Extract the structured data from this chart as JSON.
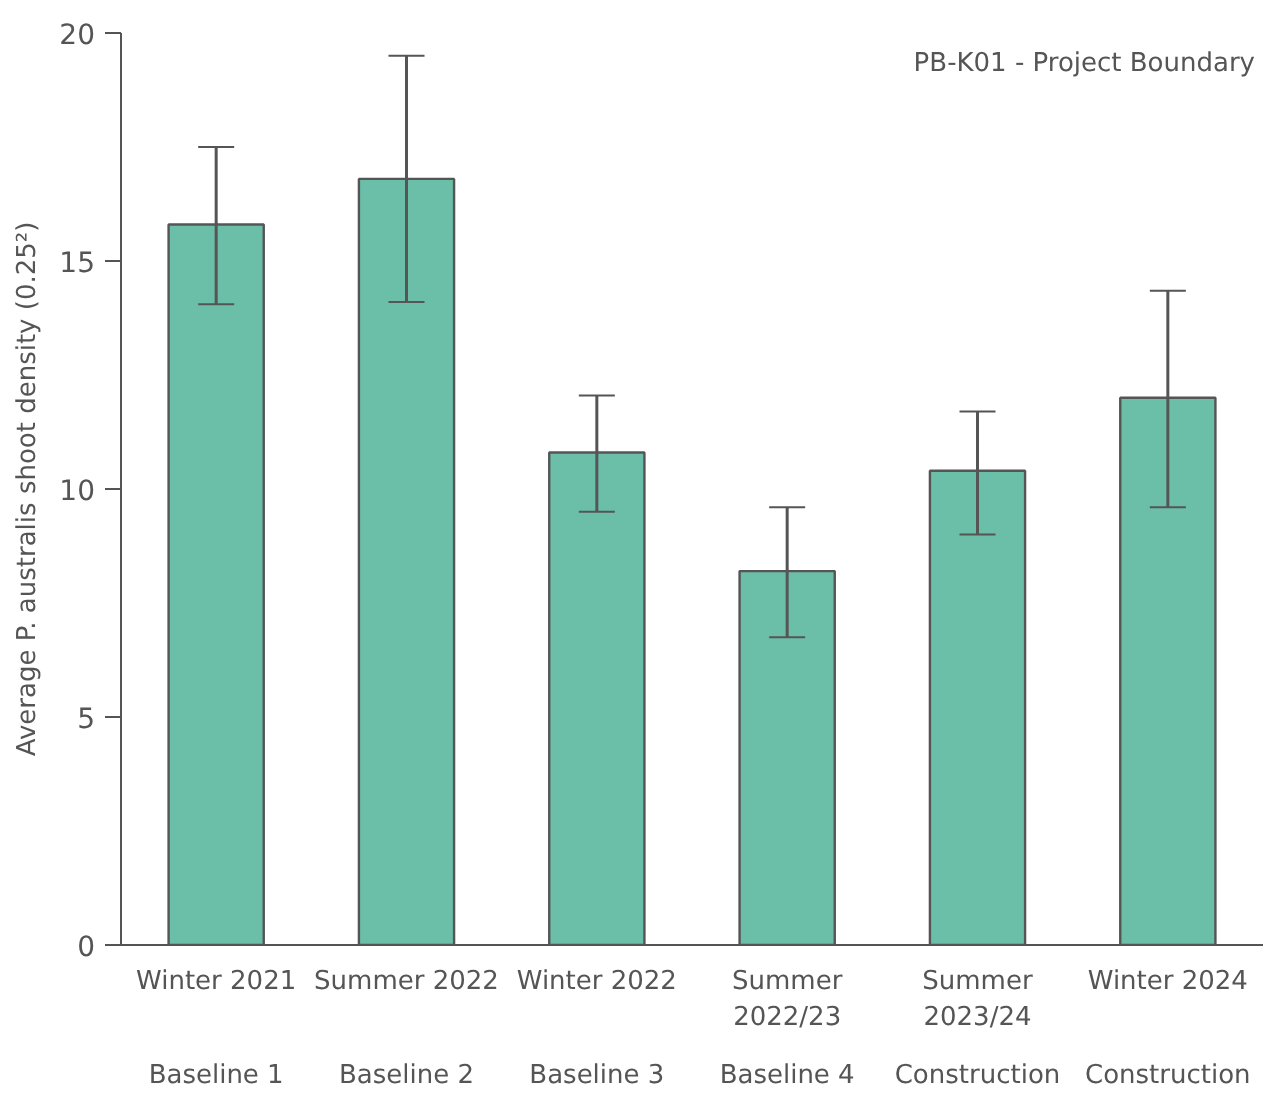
{
  "chart_data": {
    "type": "bar",
    "title": "PB-K01 - Project Boundary",
    "ylabel": "Average P. australis shoot density (0.25²)",
    "categories": [
      "Winter 2021",
      "Summer 2022",
      "Winter 2022",
      "Summer 2022/23",
      "Summer 2023/24",
      "Winter 2024"
    ],
    "values": [
      15.8,
      16.8,
      10.8,
      8.2,
      10.4,
      12.0
    ],
    "errors": [
      [
        14.05,
        17.5
      ],
      [
        14.1,
        19.5
      ],
      [
        9.5,
        12.05
      ],
      [
        6.75,
        9.6
      ],
      [
        9.0,
        11.7
      ],
      [
        9.6,
        14.35
      ]
    ],
    "color": "#6bbfa8",
    "ylim": [
      0,
      20
    ],
    "yticks": [
      0,
      5,
      10,
      15,
      20
    ],
    "grid": false,
    "annotations": [
      "Baseline 1",
      "Baseline 2",
      "Baseline 3",
      "Baseline 4",
      "Construction",
      "Construction"
    ]
  }
}
